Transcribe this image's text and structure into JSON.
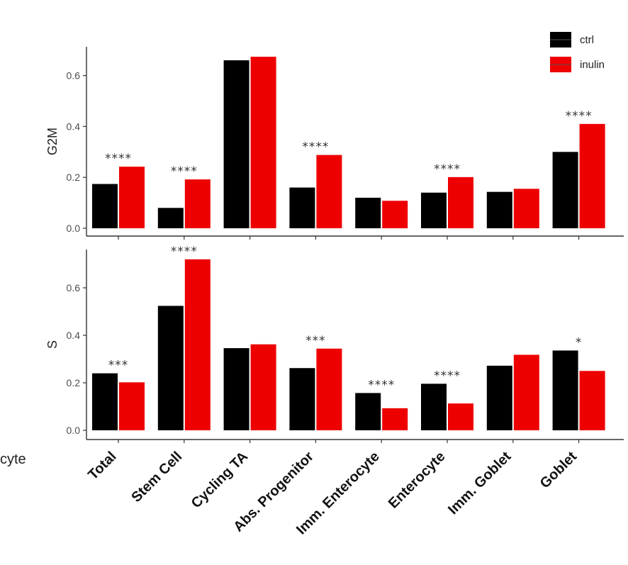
{
  "cut_off_text": "cyte",
  "legend": [
    {
      "label": "ctrl",
      "color": "#000000"
    },
    {
      "label": "inulin",
      "color": "#ee0000"
    }
  ],
  "chart_data": [
    {
      "type": "bar",
      "ylabel": "G2M",
      "ylim": [
        0,
        0.7
      ],
      "yticks": [
        "0.0",
        "0.2",
        "0.4",
        "0.6"
      ],
      "categories": [
        "Total",
        "Stem Cell",
        "Cycling TA",
        "Abs. Progenitor",
        "Imm. Enterocyte",
        "Enterocyte",
        "Imm. Goblet",
        "Goblet"
      ],
      "series": [
        {
          "name": "ctrl",
          "color": "#000000",
          "values": [
            0.174,
            0.08,
            0.66,
            0.16,
            0.12,
            0.14,
            0.143,
            0.3
          ]
        },
        {
          "name": "inulin",
          "color": "#ee0000",
          "values": [
            0.242,
            0.192,
            0.674,
            0.288,
            0.108,
            0.201,
            0.155,
            0.41
          ]
        }
      ],
      "annotations": [
        "****",
        "****",
        "",
        "****",
        "",
        "****",
        "",
        "****"
      ],
      "grid": false
    },
    {
      "type": "bar",
      "ylabel": "S",
      "ylim": [
        0,
        0.72
      ],
      "yticks": [
        "0.0",
        "0.2",
        "0.4",
        "0.6"
      ],
      "categories": [
        "Total",
        "Stem Cell",
        "Cycling TA",
        "Abs. Progenitor",
        "Imm. Enterocyte",
        "Enterocyte",
        "Imm. Goblet",
        "Goblet"
      ],
      "series": [
        {
          "name": "ctrl",
          "color": "#000000",
          "values": [
            0.24,
            0.524,
            0.346,
            0.262,
            0.157,
            0.196,
            0.272,
            0.336
          ]
        },
        {
          "name": "inulin",
          "color": "#ee0000",
          "values": [
            0.202,
            0.72,
            0.362,
            0.344,
            0.093,
            0.113,
            0.318,
            0.25
          ]
        }
      ],
      "annotations": [
        "***",
        "****",
        "",
        "***",
        "****",
        "****",
        "",
        "*"
      ],
      "grid": false
    }
  ]
}
